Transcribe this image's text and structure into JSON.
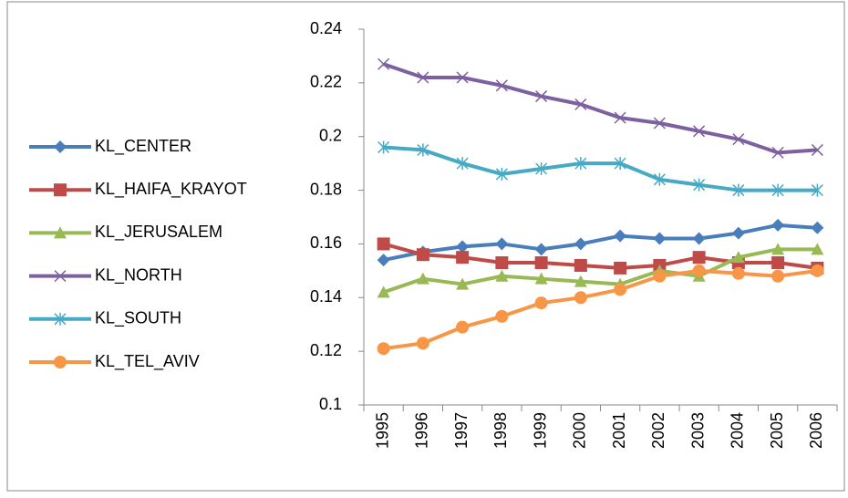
{
  "chart_data": {
    "type": "line",
    "categories": [
      "1995",
      "1996",
      "1997",
      "1998",
      "1999",
      "2000",
      "2001",
      "2002",
      "2003",
      "2004",
      "2005",
      "2006"
    ],
    "series": [
      {
        "name": "KL_CENTER",
        "color": "#4a7ebb",
        "marker": "diamond",
        "values": [
          0.154,
          0.157,
          0.159,
          0.16,
          0.158,
          0.16,
          0.163,
          0.162,
          0.162,
          0.164,
          0.167,
          0.166
        ]
      },
      {
        "name": "KL_HAIFA_KRAYOT",
        "color": "#be4b48",
        "marker": "square",
        "values": [
          0.16,
          0.156,
          0.155,
          0.153,
          0.153,
          0.152,
          0.151,
          0.152,
          0.155,
          0.153,
          0.153,
          0.151
        ]
      },
      {
        "name": "KL_JERUSALEM",
        "color": "#98b954",
        "marker": "triangle",
        "values": [
          0.142,
          0.147,
          0.145,
          0.148,
          0.147,
          0.146,
          0.145,
          0.15,
          0.148,
          0.155,
          0.158,
          0.158
        ]
      },
      {
        "name": "KL_NORTH",
        "color": "#7d60a0",
        "marker": "x",
        "values": [
          0.227,
          0.222,
          0.222,
          0.219,
          0.215,
          0.212,
          0.207,
          0.205,
          0.202,
          0.199,
          0.194,
          0.195
        ]
      },
      {
        "name": "KL_SOUTH",
        "color": "#46aac5",
        "marker": "asterisk",
        "values": [
          0.196,
          0.195,
          0.19,
          0.186,
          0.188,
          0.19,
          0.19,
          0.184,
          0.182,
          0.18,
          0.18,
          0.18
        ]
      },
      {
        "name": "KL_TEL_AVIV",
        "color": "#f79646",
        "marker": "circle",
        "values": [
          0.121,
          0.123,
          0.129,
          0.133,
          0.138,
          0.14,
          0.143,
          0.148,
          0.15,
          0.149,
          0.148,
          0.15
        ]
      }
    ],
    "ylim": [
      0.1,
      0.24
    ],
    "yticks": [
      0.1,
      0.12,
      0.14,
      0.16,
      0.18,
      0.2,
      0.22,
      0.24
    ],
    "grid": false,
    "legend": "left"
  }
}
